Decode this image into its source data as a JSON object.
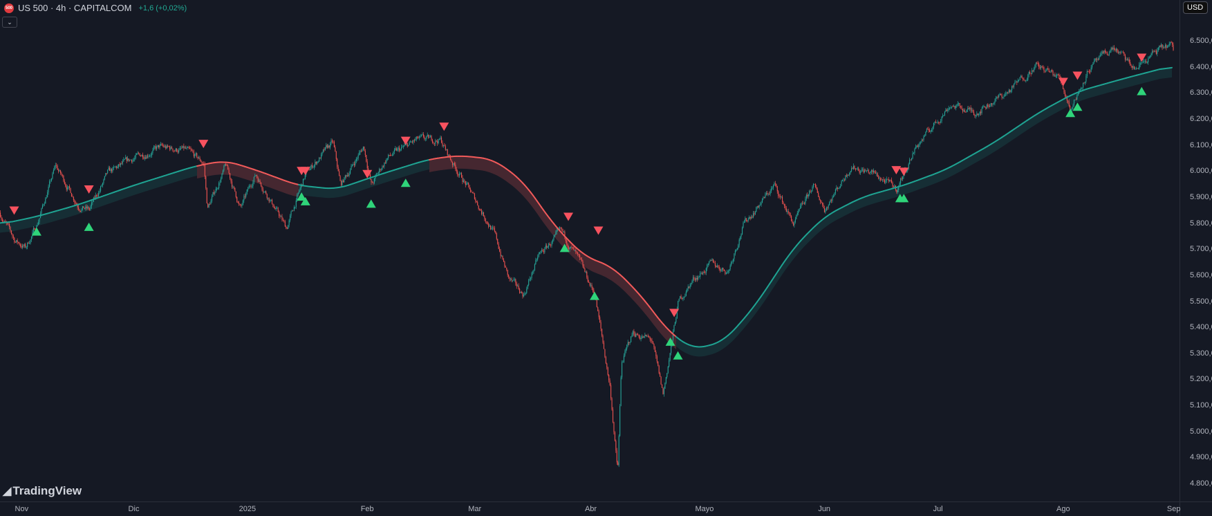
{
  "header": {
    "symbol_icon_text": "500",
    "title": "US 500 · 4h · CAPITALCOM",
    "change": "+1,6 (+0,02%)",
    "collapse_icon": "chevron-down-icon"
  },
  "currency_button": "USD",
  "branding": {
    "logo_mark": "17",
    "logo_text": "TradingView"
  },
  "colors": {
    "background": "#151924",
    "candle_up": "#26a69a",
    "candle_down": "#ef5350",
    "ma_bull": "#1fa392",
    "ma_bear": "#f05a5a",
    "signal_buy": "#2fd47a",
    "signal_sell": "#f7525f",
    "change_text": "#22ab94"
  },
  "chart_data": {
    "type": "candlestick",
    "symbol": "US 500",
    "interval": "4h",
    "y_axis": {
      "range": [
        4780,
        6540
      ],
      "tick_labels": [
        "6.500,0",
        "6.400,0",
        "6.300,0",
        "6.200,0",
        "6.100,0",
        "6.000,0",
        "5.900,0",
        "5.800,0",
        "5.700,0",
        "5.600,0",
        "5.500,0",
        "5.400,0",
        "5.300,0",
        "5.200,0",
        "5.100,0",
        "5.000,0",
        "4.900,0",
        "4.800,0"
      ],
      "tick_values": [
        6500,
        6400,
        6300,
        6200,
        6100,
        6000,
        5900,
        5800,
        5700,
        5600,
        5500,
        5400,
        5300,
        5200,
        5100,
        5000,
        4900,
        4800
      ]
    },
    "x_axis": {
      "tick_labels": [
        "Nov",
        "Dic",
        "2025",
        "Feb",
        "Mar",
        "Abr",
        "Mayo",
        "Jun",
        "Jul",
        "Ago",
        "Sep"
      ],
      "tick_dates": [
        "2024-11-01",
        "2024-12-01",
        "2025-01-01",
        "2025-02-01",
        "2025-03-01",
        "2025-04-01",
        "2025-05-01",
        "2025-06-01",
        "2025-07-01",
        "2025-08-01",
        "2025-09-01"
      ]
    },
    "grid": false,
    "price_path": [
      [
        "2024-10-26",
        5840
      ],
      [
        "2024-10-30",
        5735
      ],
      [
        "2024-11-02",
        5705
      ],
      [
        "2024-11-05",
        5795
      ],
      [
        "2024-11-10",
        6020
      ],
      [
        "2024-11-16",
        5870
      ],
      [
        "2024-11-19",
        5850
      ],
      [
        "2024-11-24",
        5990
      ],
      [
        "2024-12-01",
        6050
      ],
      [
        "2024-12-08",
        6090
      ],
      [
        "2024-12-15",
        6080
      ],
      [
        "2024-12-20",
        6030
      ],
      [
        "2024-12-21",
        5855
      ],
      [
        "2024-12-26",
        6020
      ],
      [
        "2024-12-30",
        5855
      ],
      [
        "2025-01-03",
        5990
      ],
      [
        "2025-01-11",
        5780
      ],
      [
        "2025-01-16",
        5990
      ],
      [
        "2025-01-23",
        6110
      ],
      [
        "2025-01-25",
        5945
      ],
      [
        "2025-01-31",
        6095
      ],
      [
        "2025-02-02",
        5945
      ],
      [
        "2025-02-06",
        6050
      ],
      [
        "2025-02-14",
        6120
      ],
      [
        "2025-02-20",
        6120
      ],
      [
        "2025-02-22",
        6060
      ],
      [
        "2025-02-28",
        5915
      ],
      [
        "2025-03-06",
        5765
      ],
      [
        "2025-03-10",
        5585
      ],
      [
        "2025-03-14",
        5525
      ],
      [
        "2025-03-18",
        5675
      ],
      [
        "2025-03-24",
        5765
      ],
      [
        "2025-03-28",
        5675
      ],
      [
        "2025-04-02",
        5525
      ],
      [
        "2025-04-06",
        5170
      ],
      [
        "2025-04-08",
        4840
      ],
      [
        "2025-04-09",
        5260
      ],
      [
        "2025-04-12",
        5380
      ],
      [
        "2025-04-17",
        5350
      ],
      [
        "2025-04-20",
        5140
      ],
      [
        "2025-04-24",
        5495
      ],
      [
        "2025-04-28",
        5585
      ],
      [
        "2025-05-03",
        5645
      ],
      [
        "2025-05-07",
        5615
      ],
      [
        "2025-05-11",
        5795
      ],
      [
        "2025-05-19",
        5945
      ],
      [
        "2025-05-24",
        5795
      ],
      [
        "2025-05-29",
        5945
      ],
      [
        "2025-06-01",
        5855
      ],
      [
        "2025-06-08",
        6020
      ],
      [
        "2025-06-14",
        5990
      ],
      [
        "2025-06-20",
        5930
      ],
      [
        "2025-06-25",
        6090
      ],
      [
        "2025-07-04",
        6255
      ],
      [
        "2025-07-10",
        6225
      ],
      [
        "2025-07-18",
        6300
      ],
      [
        "2025-07-25",
        6405
      ],
      [
        "2025-07-31",
        6360
      ],
      [
        "2025-08-03",
        6240
      ],
      [
        "2025-08-08",
        6390
      ],
      [
        "2025-08-15",
        6475
      ],
      [
        "2025-08-21",
        6390
      ],
      [
        "2025-08-26",
        6450
      ],
      [
        "2025-08-31",
        6485
      ],
      [
        "2025-09-01",
        6450
      ]
    ],
    "moving_average": [
      [
        "2024-10-26",
        5795
      ],
      [
        "2024-11-05",
        5825
      ],
      [
        "2024-11-16",
        5870
      ],
      [
        "2024-12-01",
        5945
      ],
      [
        "2024-12-18",
        6020
      ],
      [
        "2024-12-26",
        6040
      ],
      [
        "2025-01-03",
        6005
      ],
      [
        "2025-01-14",
        5945
      ],
      [
        "2025-01-24",
        5930
      ],
      [
        "2025-02-05",
        5990
      ],
      [
        "2025-02-17",
        6045
      ],
      [
        "2025-02-25",
        6060
      ],
      [
        "2025-03-06",
        6045
      ],
      [
        "2025-03-14",
        5960
      ],
      [
        "2025-03-22",
        5795
      ],
      [
        "2025-03-30",
        5675
      ],
      [
        "2025-04-07",
        5630
      ],
      [
        "2025-04-15",
        5510
      ],
      [
        "2025-04-21",
        5390
      ],
      [
        "2025-04-28",
        5315
      ],
      [
        "2025-05-06",
        5345
      ],
      [
        "2025-05-14",
        5480
      ],
      [
        "2025-05-24",
        5705
      ],
      [
        "2025-06-01",
        5825
      ],
      [
        "2025-06-11",
        5900
      ],
      [
        "2025-06-22",
        5945
      ],
      [
        "2025-07-03",
        6005
      ],
      [
        "2025-07-15",
        6110
      ],
      [
        "2025-07-26",
        6225
      ],
      [
        "2025-08-05",
        6305
      ],
      [
        "2025-08-18",
        6355
      ],
      [
        "2025-09-01",
        6405
      ]
    ],
    "bearish_ma_ranges": [
      [
        "2024-12-18",
        "2025-01-14"
      ],
      [
        "2025-02-17",
        "2025-04-23"
      ]
    ],
    "sell_signals": [
      [
        "2024-10-30",
        5848
      ],
      [
        "2024-11-19",
        5929
      ],
      [
        "2024-12-20",
        6104
      ],
      [
        "2025-01-15",
        6000
      ],
      [
        "2025-01-16",
        6000
      ],
      [
        "2025-02-01",
        5988
      ],
      [
        "2025-02-11",
        6116
      ],
      [
        "2025-02-21",
        6170
      ],
      [
        "2025-03-26",
        5824
      ],
      [
        "2025-04-03",
        5771
      ],
      [
        "2025-04-23",
        5455
      ],
      [
        "2025-06-20",
        6003
      ],
      [
        "2025-06-22",
        5997
      ],
      [
        "2025-08-01",
        6342
      ],
      [
        "2025-08-05",
        6366
      ],
      [
        "2025-08-23",
        6435
      ]
    ],
    "buy_signals": [
      [
        "2024-11-05",
        5768
      ],
      [
        "2024-11-19",
        5786
      ],
      [
        "2025-01-15",
        5902
      ],
      [
        "2025-01-16",
        5884
      ],
      [
        "2025-02-02",
        5875
      ],
      [
        "2025-02-11",
        5955
      ],
      [
        "2025-03-25",
        5705
      ],
      [
        "2025-04-02",
        5521
      ],
      [
        "2025-04-22",
        5345
      ],
      [
        "2025-04-24",
        5292
      ],
      [
        "2025-06-21",
        5896
      ],
      [
        "2025-06-22",
        5896
      ],
      [
        "2025-08-03",
        6223
      ],
      [
        "2025-08-05",
        6247
      ],
      [
        "2025-08-23",
        6307
      ]
    ]
  }
}
